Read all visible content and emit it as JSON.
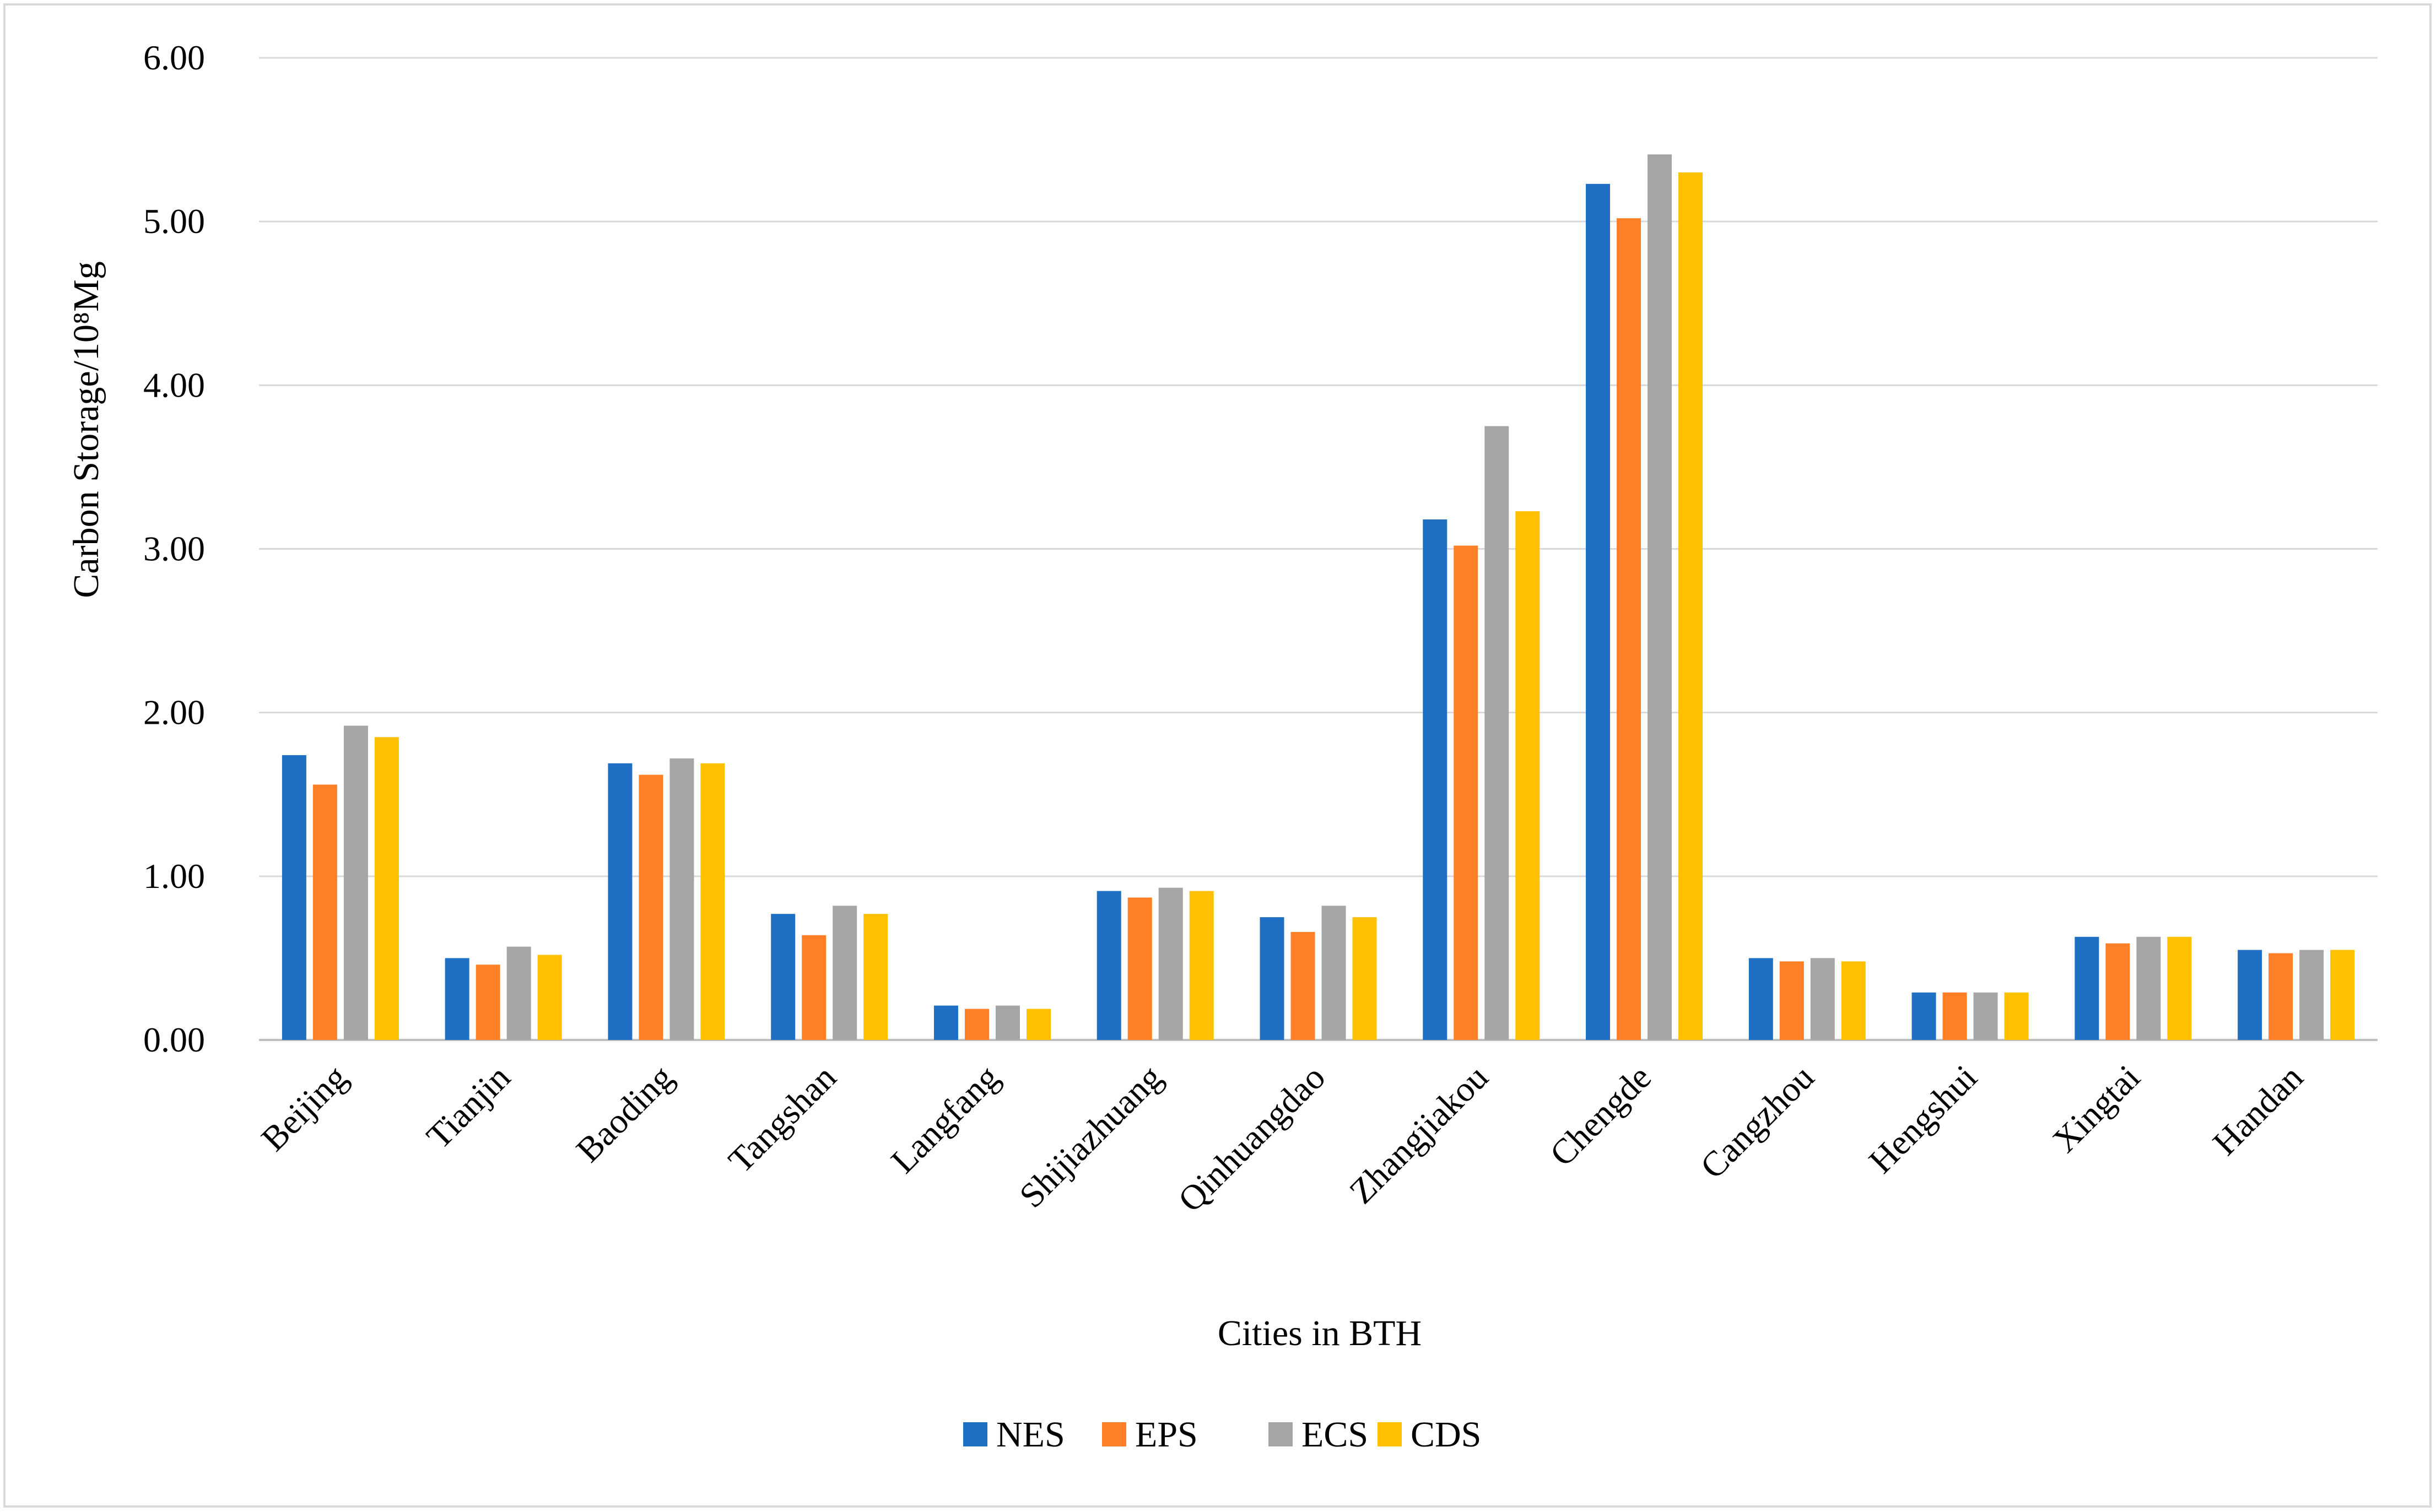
{
  "chart_data": {
    "type": "bar",
    "title": "",
    "xlabel": "Cities in BTH",
    "ylabel": "Carbon Storage/10⁸Mg",
    "ylim": [
      0,
      6
    ],
    "yticks": [
      "0.00",
      "1.00",
      "2.00",
      "3.00",
      "4.00",
      "5.00",
      "6.00"
    ],
    "grid": true,
    "legend_position": "bottom",
    "categories": [
      "Beijing",
      "Tianjin",
      "Baoding",
      "Tangshan",
      "Langfang",
      "Shijiazhuang",
      "Qinhuangdao",
      "Zhangjiakou",
      "Chengde",
      "Cangzhou",
      "Hengshui",
      "Xingtai",
      "Handan"
    ],
    "series": [
      {
        "name": "NES",
        "color": "#1f6fc5",
        "values": [
          1.74,
          0.5,
          1.69,
          0.77,
          0.21,
          0.91,
          0.75,
          3.18,
          5.23,
          0.5,
          0.29,
          0.63,
          0.55
        ]
      },
      {
        "name": "EPS",
        "color": "#ff7f27",
        "values": [
          1.56,
          0.46,
          1.62,
          0.64,
          0.19,
          0.87,
          0.66,
          3.02,
          5.02,
          0.48,
          0.29,
          0.59,
          0.53
        ]
      },
      {
        "name": "ECS",
        "color": "#a5a5a5",
        "values": [
          1.92,
          0.57,
          1.72,
          0.82,
          0.21,
          0.93,
          0.82,
          3.75,
          5.41,
          0.5,
          0.29,
          0.63,
          0.55
        ]
      },
      {
        "name": "CDS",
        "color": "#ffc000",
        "values": [
          1.85,
          0.52,
          1.69,
          0.77,
          0.19,
          0.91,
          0.75,
          3.23,
          5.3,
          0.48,
          0.29,
          0.63,
          0.55
        ]
      }
    ]
  }
}
